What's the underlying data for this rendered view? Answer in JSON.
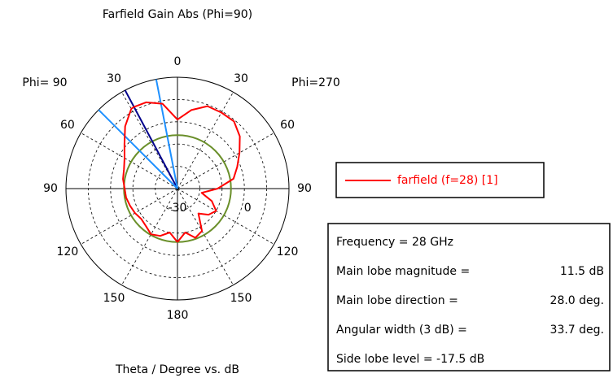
{
  "chart_data": {
    "type": "polar",
    "title": "Farfield Gain Abs (Phi=90)",
    "left_plane_label": "Phi= 90",
    "right_plane_label": "Phi=270",
    "axis_label": "Theta / Degree vs. dB",
    "rlim": [
      -30,
      20
    ],
    "rgrid": [
      -20,
      -10,
      0,
      10,
      20
    ],
    "rticks": [
      -30,
      0
    ],
    "theta_ticks": [
      0,
      30,
      60,
      90,
      120,
      150,
      180
    ],
    "spokes": [
      0,
      30,
      60,
      90,
      120,
      150,
      180,
      210,
      240,
      270,
      300,
      330
    ],
    "series": [
      {
        "name": "farfield (f=28) [1]",
        "color": "#ff0000",
        "x": [
          -180,
          -170,
          -160,
          -150,
          -140,
          -130,
          -120,
          -110,
          -100,
          -90,
          -80,
          -70,
          -60,
          -50,
          -40,
          -30,
          -28,
          -20,
          -10,
          0,
          10,
          20,
          30,
          40,
          50,
          60,
          70,
          80,
          90,
          100,
          110,
          120,
          130,
          140,
          150,
          160,
          170,
          180
        ],
        "values": [
          -6,
          -10,
          -7.4,
          -6.3,
          -8,
          -8.8,
          -8,
          -7.4,
          -6.6,
          -6.3,
          -5.2,
          -4.5,
          -2.6,
          1,
          6.5,
          11.4,
          11.5,
          11.2,
          8.7,
          1,
          5.8,
          9.4,
          9.4,
          9.4,
          6.5,
          2.1,
          -1.5,
          -4.5,
          -12,
          -19,
          -13.6,
          -10,
          -11.8,
          -15.4,
          -8,
          -6.5,
          -10,
          -6
        ]
      }
    ],
    "side_lobe_circle": {
      "value": -6,
      "color": "#6a8f2a"
    },
    "direction_lines": [
      {
        "angle": -28,
        "color": "#00008b"
      },
      {
        "angle": -11,
        "color": "#1e90ff"
      },
      {
        "angle": -45,
        "color": "#1e90ff"
      }
    ],
    "legend_position": "right",
    "info": [
      {
        "label": "Frequency = 28 GHz",
        "value": ""
      },
      {
        "label": "Main lobe magnitude =",
        "value": "11.5 dB"
      },
      {
        "label": "Main lobe direction =",
        "value": "28.0 deg."
      },
      {
        "label": "Angular width (3 dB) =",
        "value": "33.7 deg."
      },
      {
        "label": "Side lobe level = -17.5 dB",
        "value": ""
      }
    ]
  }
}
